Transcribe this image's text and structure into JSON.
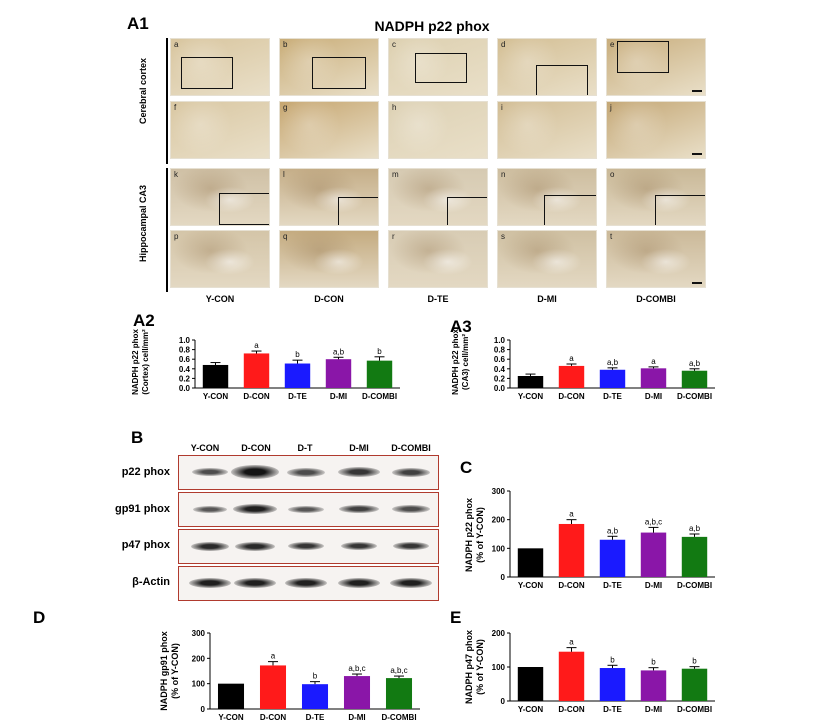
{
  "panel_a1": {
    "label": "A1",
    "title": "NADPH p22 phox",
    "row_labels": [
      "Cerebral cortex",
      "Hippocampal CA3"
    ],
    "groups": [
      "Y-CON",
      "D-CON",
      "D-TE",
      "D-MI",
      "D-COMBI"
    ],
    "image_letters": [
      "a",
      "b",
      "c",
      "d",
      "e",
      "f",
      "g",
      "h",
      "i",
      "j",
      "k",
      "l",
      "m",
      "n",
      "o",
      "p",
      "q",
      "r",
      "s",
      "t"
    ]
  },
  "panel_b": {
    "label": "B",
    "lane_labels": [
      "Y-CON",
      "D-CON",
      "D-T",
      "D-MI",
      "D-COMBI"
    ],
    "proteins": [
      "p22 phox",
      "gp91 phox",
      "p47 phox",
      "β-Actin"
    ]
  },
  "colors": {
    "Y-CON": "#000000",
    "D-CON": "#ff1a1a",
    "D-TE": "#1a1aff",
    "D-MI": "#8a16a8",
    "D-COMBI": "#127a12"
  },
  "chart_data": [
    {
      "id": "A2",
      "label": "A2",
      "type": "bar",
      "categories": [
        "Y-CON",
        "D-CON",
        "D-TE",
        "D-MI",
        "D-COMBI"
      ],
      "values": [
        0.48,
        0.72,
        0.51,
        0.6,
        0.57
      ],
      "errors": [
        0.05,
        0.05,
        0.07,
        0.04,
        0.08
      ],
      "annotations": [
        "",
        "a",
        "b",
        "a,b",
        "b"
      ],
      "ylabel": "NADPH p22 phox (Cortex) cell/mm²",
      "ylim": [
        0,
        1.0
      ],
      "yticks": [
        0.0,
        0.2,
        0.4,
        0.6,
        0.8,
        1.0
      ],
      "ytick_labels": [
        "0.0",
        "0.2",
        "0.4",
        "0.6",
        "0.8",
        "1.0"
      ]
    },
    {
      "id": "A3",
      "label": "A3",
      "type": "bar",
      "categories": [
        "Y-CON",
        "D-CON",
        "D-TE",
        "D-MI",
        "D-COMBI"
      ],
      "values": [
        0.25,
        0.46,
        0.38,
        0.41,
        0.36
      ],
      "errors": [
        0.04,
        0.04,
        0.04,
        0.03,
        0.04
      ],
      "annotations": [
        "",
        "a",
        "a,b",
        "a",
        "a,b"
      ],
      "ylabel": "NADPH p22 phox (CA3) cell/mm²",
      "ylim": [
        0,
        1.0
      ],
      "yticks": [
        0.0,
        0.2,
        0.4,
        0.6,
        0.8,
        1.0
      ],
      "ytick_labels": [
        "0.0",
        "0.2",
        "0.4",
        "0.6",
        "0.8",
        "1.0"
      ]
    },
    {
      "id": "C",
      "label": "C",
      "type": "bar",
      "categories": [
        "Y-CON",
        "D-CON",
        "D-TE",
        "D-MI",
        "D-COMBI"
      ],
      "values": [
        100,
        185,
        130,
        155,
        140
      ],
      "errors": [
        0,
        15,
        12,
        18,
        10
      ],
      "annotations": [
        "",
        "a",
        "a,b",
        "a,b,c",
        "a,b"
      ],
      "ylabel": "NADPH p22 phox (% of Y-CON)",
      "ylim": [
        0,
        300
      ],
      "yticks": [
        0,
        100,
        200,
        300
      ],
      "ytick_labels": [
        "0",
        "100",
        "200",
        "300"
      ]
    },
    {
      "id": "D",
      "label": "D",
      "type": "bar",
      "categories": [
        "Y-CON",
        "D-CON",
        "D-TE",
        "D-MI",
        "D-COMBI"
      ],
      "values": [
        100,
        172,
        98,
        130,
        122
      ],
      "errors": [
        0,
        15,
        10,
        8,
        8
      ],
      "annotations": [
        "",
        "a",
        "b",
        "a,b,c",
        "a,b,c"
      ],
      "ylabel": "NADPH gp91 phox (% of Y-CON)",
      "ylim": [
        0,
        300
      ],
      "yticks": [
        0,
        100,
        200,
        300
      ],
      "ytick_labels": [
        "0",
        "100",
        "200",
        "300"
      ]
    },
    {
      "id": "E",
      "label": "E",
      "type": "bar",
      "categories": [
        "Y-CON",
        "D-CON",
        "D-TE",
        "D-MI",
        "D-COMBI"
      ],
      "values": [
        100,
        145,
        97,
        90,
        95
      ],
      "errors": [
        0,
        12,
        8,
        8,
        6
      ],
      "annotations": [
        "",
        "a",
        "b",
        "b",
        "b"
      ],
      "ylabel": "NADPH p47 phox (% of Y-CON)",
      "ylim": [
        0,
        200
      ],
      "yticks": [
        0,
        100,
        200
      ],
      "ytick_labels": [
        "0",
        "100",
        "200"
      ]
    }
  ]
}
